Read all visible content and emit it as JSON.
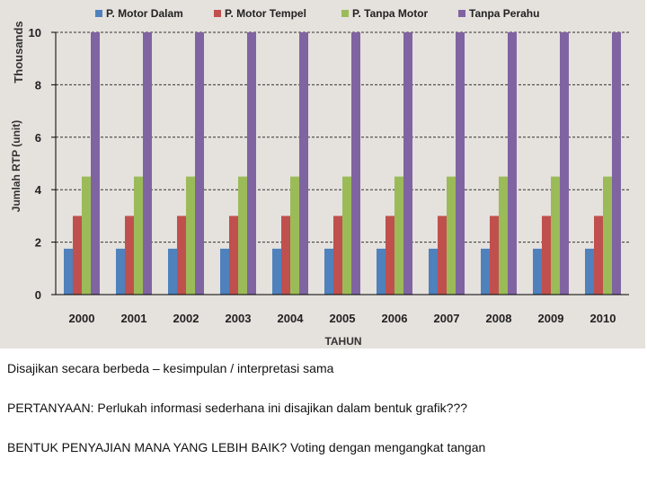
{
  "chart_data": {
    "type": "bar",
    "title": "",
    "xlabel": "TAHUN",
    "ylabel": "Jumlah RTP (unit)",
    "y_multiplier_label": "Thousands",
    "ylim": [
      0,
      10
    ],
    "yticks": [
      "0",
      "2",
      "4",
      "6",
      "8",
      "10"
    ],
    "grid": "horizontal dashed",
    "legend_position": "top",
    "categories": [
      "2000",
      "2001",
      "2002",
      "2003",
      "2004",
      "2005",
      "2006",
      "2007",
      "2008",
      "2009",
      "2010"
    ],
    "series": [
      {
        "name": "P. Motor Dalam",
        "color": "#4f81bd",
        "values": [
          1.75,
          1.75,
          1.75,
          1.75,
          1.75,
          1.75,
          1.75,
          1.75,
          1.75,
          1.75,
          1.75
        ]
      },
      {
        "name": "P. Motor Tempel",
        "color": "#c0504d",
        "values": [
          3,
          3,
          3,
          3,
          3,
          3,
          3,
          3,
          3,
          3,
          3
        ]
      },
      {
        "name": "P. Tanpa Motor",
        "color": "#9bbb59",
        "values": [
          4.5,
          4.5,
          4.5,
          4.5,
          4.5,
          4.5,
          4.5,
          4.5,
          4.5,
          4.5,
          4.5
        ]
      },
      {
        "name": "Tanpa Perahu",
        "color": "#8064a2",
        "values": [
          10,
          10,
          10,
          10,
          10,
          10,
          10,
          10,
          10,
          10,
          10
        ]
      }
    ]
  },
  "captions": {
    "line1": "Disajikan secara berbeda – kesimpulan / interpretasi sama",
    "line2": "PERTANYAAN: Perlukah informasi sederhana ini disajikan dalam bentuk grafik???",
    "line3": "BENTUK PENYAJIAN MANA YANG LEBIH BAIK? Voting dengan mengangkat tangan"
  }
}
